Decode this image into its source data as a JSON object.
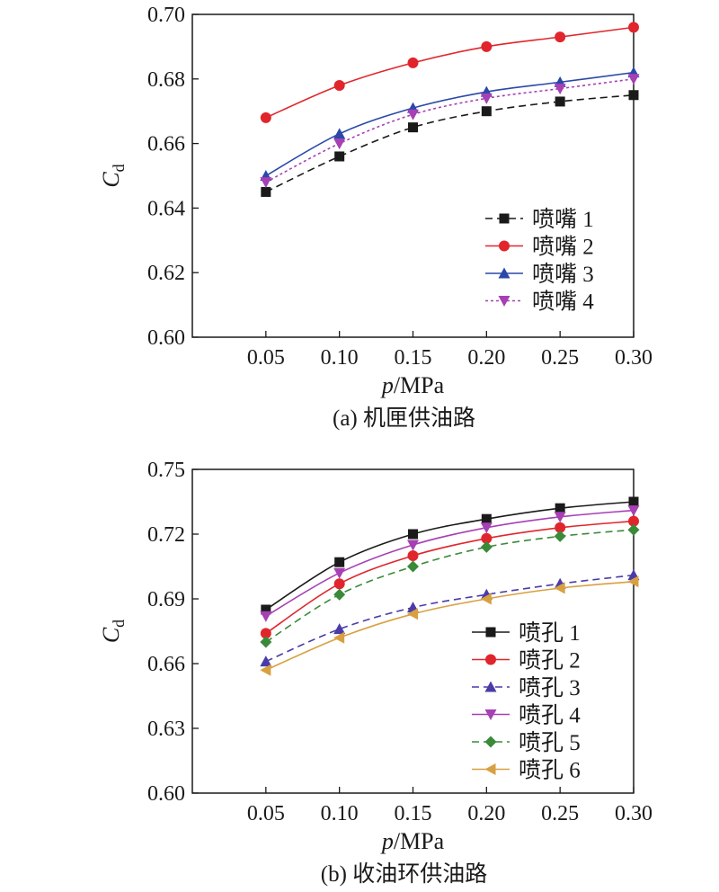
{
  "chart_data": [
    {
      "type": "line",
      "caption": "(a) 机匣供油路",
      "xlabel_main": "p",
      "xlabel_unit": "/MPa",
      "ylabel_main": "C",
      "ylabel_sub": "d",
      "x": [
        0.05,
        0.1,
        0.15,
        0.2,
        0.25,
        0.3
      ],
      "x_tick_labels": [
        "0.05",
        "0.10",
        "0.15",
        "0.20",
        "0.25",
        "0.30"
      ],
      "xlim": [
        0.0,
        0.3
      ],
      "ylim": [
        0.6,
        0.7
      ],
      "y_ticks": [
        0.6,
        0.62,
        0.64,
        0.66,
        0.68,
        0.7
      ],
      "y_tick_labels": [
        "0.60",
        "0.62",
        "0.64",
        "0.66",
        "0.68",
        "0.70"
      ],
      "grid": false,
      "legend_position": "lower-right",
      "series": [
        {
          "name": "喷嘴 1",
          "color": "#1a1a1a",
          "marker": "square",
          "dash": "dash",
          "values": [
            0.645,
            0.656,
            0.665,
            0.67,
            0.673,
            0.675
          ]
        },
        {
          "name": "喷嘴 2",
          "color": "#e0262c",
          "marker": "circle",
          "dash": "solid",
          "values": [
            0.668,
            0.678,
            0.685,
            0.69,
            0.693,
            0.696
          ]
        },
        {
          "name": "喷嘴 3",
          "color": "#2a48a8",
          "marker": "triangle-up",
          "dash": "solid",
          "values": [
            0.65,
            0.663,
            0.671,
            0.676,
            0.679,
            0.682
          ]
        },
        {
          "name": "喷嘴 4",
          "color": "#a640b4",
          "marker": "triangle-down",
          "dash": "dot",
          "values": [
            0.648,
            0.66,
            0.669,
            0.674,
            0.677,
            0.68
          ]
        }
      ]
    },
    {
      "type": "line",
      "caption": "(b) 收油环供油路",
      "xlabel_main": "p",
      "xlabel_unit": "/MPa",
      "ylabel_main": "C",
      "ylabel_sub": "d",
      "x": [
        0.05,
        0.1,
        0.15,
        0.2,
        0.25,
        0.3
      ],
      "x_tick_labels": [
        "0.05",
        "0.10",
        "0.15",
        "0.20",
        "0.25",
        "0.30"
      ],
      "xlim": [
        0.0,
        0.3
      ],
      "ylim": [
        0.6,
        0.75
      ],
      "y_ticks": [
        0.6,
        0.63,
        0.66,
        0.69,
        0.72,
        0.75
      ],
      "y_tick_labels": [
        "0.60",
        "0.63",
        "0.66",
        "0.69",
        "0.72",
        "0.75"
      ],
      "grid": false,
      "legend_position": "lower-right",
      "series": [
        {
          "name": "喷孔 1",
          "color": "#1a1a1a",
          "marker": "square",
          "dash": "solid",
          "values": [
            0.685,
            0.707,
            0.72,
            0.727,
            0.732,
            0.735
          ]
        },
        {
          "name": "喷孔 2",
          "color": "#e0262c",
          "marker": "circle",
          "dash": "solid",
          "values": [
            0.674,
            0.697,
            0.71,
            0.718,
            0.723,
            0.726
          ]
        },
        {
          "name": "喷孔 3",
          "color": "#4a3ca8",
          "marker": "triangle-up",
          "dash": "dash",
          "values": [
            0.661,
            0.676,
            0.686,
            0.692,
            0.697,
            0.701
          ]
        },
        {
          "name": "喷孔 4",
          "color": "#a640b4",
          "marker": "triangle-down",
          "dash": "solid",
          "values": [
            0.682,
            0.702,
            0.715,
            0.723,
            0.728,
            0.731
          ]
        },
        {
          "name": "喷孔 5",
          "color": "#3a8a3a",
          "marker": "diamond",
          "dash": "dash",
          "values": [
            0.67,
            0.692,
            0.705,
            0.714,
            0.719,
            0.722
          ]
        },
        {
          "name": "喷孔 6",
          "color": "#d8a040",
          "marker": "triangle-left",
          "dash": "solid",
          "values": [
            0.657,
            0.672,
            0.683,
            0.69,
            0.695,
            0.698
          ]
        }
      ]
    }
  ]
}
